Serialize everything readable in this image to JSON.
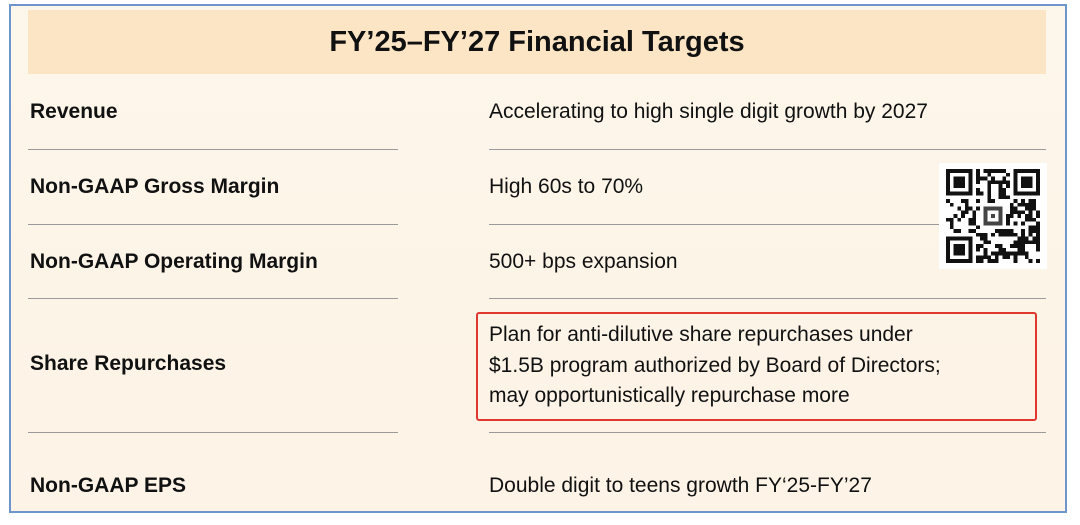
{
  "title": "FY’25–FY’27 Financial Targets",
  "rows": [
    {
      "label": "Revenue",
      "value": "Accelerating to high single digit growth by 2027"
    },
    {
      "label": "Non-GAAP Gross Margin",
      "value": "High 60s to 70%"
    },
    {
      "label": "Non-GAAP Operating Margin",
      "value": "500+ bps expansion"
    },
    {
      "label": "Share Repurchases",
      "value_lines": [
        "Plan for anti-dilutive share repurchases under",
        "$1.5B program authorized by Board of Directors;",
        "may opportunistically repurchase more"
      ]
    },
    {
      "label": "Non-GAAP EPS",
      "value": "Double digit to teens growth FY‘25-FY’27"
    }
  ],
  "colors": {
    "frame_border": "#6f95cf",
    "title_background": "#fbe5c4",
    "highlight_border": "#e0382f"
  },
  "icons": {
    "qr": "qr-code-icon"
  }
}
